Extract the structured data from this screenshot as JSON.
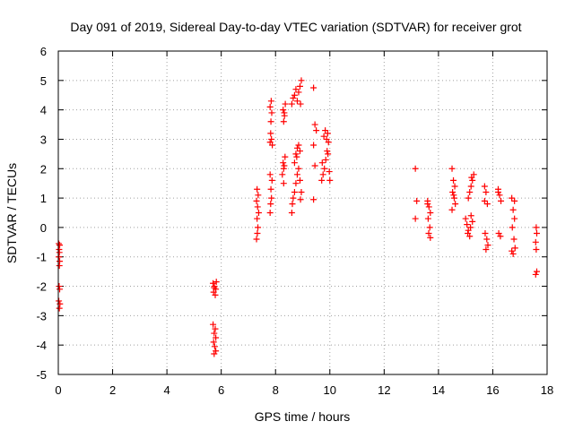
{
  "chart_data": {
    "type": "scatter",
    "title": "Day 091 of 2019, Sidereal Day-to-day VTEC variation (SDTVAR) for receiver grot",
    "xlabel": "GPS time / hours",
    "ylabel": "SDTVAR / TECUs",
    "xlim": [
      0,
      18
    ],
    "ylim": [
      -5,
      6
    ],
    "xticks": [
      0,
      2,
      4,
      6,
      8,
      10,
      12,
      14,
      16,
      18
    ],
    "yticks": [
      -5,
      -4,
      -3,
      -2,
      -1,
      0,
      1,
      2,
      3,
      4,
      5,
      6
    ],
    "grid": true,
    "marker": "+",
    "color": "#ff0000",
    "series": [
      {
        "name": "SDTVAR",
        "points": [
          [
            0.02,
            -0.55
          ],
          [
            0.05,
            -0.6
          ],
          [
            0.03,
            -0.75
          ],
          [
            0.04,
            -0.85
          ],
          [
            0.02,
            -1.0
          ],
          [
            0.05,
            -1.15
          ],
          [
            0.04,
            -1.3
          ],
          [
            0.03,
            -2.0
          ],
          [
            0.05,
            -2.1
          ],
          [
            0.02,
            -2.5
          ],
          [
            0.06,
            -2.6
          ],
          [
            0.04,
            -2.75
          ],
          [
            5.7,
            -1.9
          ],
          [
            5.75,
            -2.0
          ],
          [
            5.8,
            -2.1
          ],
          [
            5.72,
            -2.2
          ],
          [
            5.78,
            -2.3
          ],
          [
            5.74,
            -2.05
          ],
          [
            5.82,
            -1.85
          ],
          [
            5.7,
            -3.3
          ],
          [
            5.78,
            -3.45
          ],
          [
            5.74,
            -3.6
          ],
          [
            5.8,
            -3.75
          ],
          [
            5.72,
            -3.9
          ],
          [
            5.76,
            -4.05
          ],
          [
            5.8,
            -4.2
          ],
          [
            5.74,
            -4.3
          ],
          [
            7.3,
            -0.4
          ],
          [
            7.33,
            -0.2
          ],
          [
            7.35,
            0.0
          ],
          [
            7.32,
            0.3
          ],
          [
            7.38,
            0.5
          ],
          [
            7.34,
            0.7
          ],
          [
            7.3,
            0.9
          ],
          [
            7.36,
            1.1
          ],
          [
            7.32,
            1.3
          ],
          [
            7.8,
            0.5
          ],
          [
            7.82,
            0.8
          ],
          [
            7.85,
            1.0
          ],
          [
            7.83,
            1.3
          ],
          [
            7.87,
            1.6
          ],
          [
            7.8,
            1.8
          ],
          [
            7.8,
            2.9
          ],
          [
            7.85,
            3.0
          ],
          [
            7.82,
            3.2
          ],
          [
            7.88,
            2.8
          ],
          [
            7.83,
            3.6
          ],
          [
            7.86,
            3.9
          ],
          [
            7.8,
            4.1
          ],
          [
            7.84,
            4.3
          ],
          [
            8.25,
            1.8
          ],
          [
            8.3,
            2.0
          ],
          [
            8.28,
            2.2
          ],
          [
            8.35,
            2.4
          ],
          [
            8.32,
            2.1
          ],
          [
            8.3,
            1.5
          ],
          [
            8.3,
            3.6
          ],
          [
            8.33,
            3.8
          ],
          [
            8.28,
            4.0
          ],
          [
            8.36,
            4.2
          ],
          [
            8.32,
            3.9
          ],
          [
            8.6,
            0.5
          ],
          [
            8.62,
            0.8
          ],
          [
            8.65,
            1.0
          ],
          [
            8.7,
            1.2
          ],
          [
            8.75,
            1.5
          ],
          [
            8.8,
            1.8
          ],
          [
            8.85,
            2.0
          ],
          [
            8.9,
            1.6
          ],
          [
            8.95,
            1.2
          ],
          [
            8.92,
            0.95
          ],
          [
            8.7,
            2.2
          ],
          [
            8.75,
            2.5
          ],
          [
            8.8,
            2.7
          ],
          [
            8.85,
            2.8
          ],
          [
            8.9,
            2.6
          ],
          [
            8.78,
            2.4
          ],
          [
            8.6,
            4.2
          ],
          [
            8.65,
            4.4
          ],
          [
            8.7,
            4.5
          ],
          [
            8.75,
            4.7
          ],
          [
            8.8,
            4.3
          ],
          [
            8.85,
            4.6
          ],
          [
            8.9,
            4.8
          ],
          [
            8.95,
            5.0
          ],
          [
            8.92,
            4.2
          ],
          [
            9.4,
            4.75
          ],
          [
            9.45,
            3.5
          ],
          [
            9.5,
            3.3
          ],
          [
            9.4,
            2.8
          ],
          [
            9.45,
            2.1
          ],
          [
            9.4,
            0.95
          ],
          [
            9.7,
            1.6
          ],
          [
            9.75,
            1.8
          ],
          [
            9.8,
            2.0
          ],
          [
            9.85,
            2.3
          ],
          [
            9.9,
            2.6
          ],
          [
            9.95,
            2.9
          ],
          [
            9.78,
            3.1
          ],
          [
            9.83,
            3.3
          ],
          [
            9.88,
            3.0
          ],
          [
            9.93,
            2.5
          ],
          [
            9.98,
            1.9
          ],
          [
            10.0,
            1.6
          ],
          [
            9.72,
            2.2
          ],
          [
            9.92,
            3.2
          ],
          [
            13.15,
            2.0
          ],
          [
            13.2,
            0.9
          ],
          [
            13.15,
            0.3
          ],
          [
            13.6,
            0.9
          ],
          [
            13.65,
            0.7
          ],
          [
            13.7,
            0.5
          ],
          [
            13.62,
            0.3
          ],
          [
            13.68,
            0.0
          ],
          [
            13.64,
            -0.2
          ],
          [
            13.7,
            -0.35
          ],
          [
            13.6,
            0.8
          ],
          [
            14.5,
            2.0
          ],
          [
            14.55,
            1.6
          ],
          [
            14.6,
            1.4
          ],
          [
            14.52,
            1.2
          ],
          [
            14.58,
            1.0
          ],
          [
            14.62,
            0.8
          ],
          [
            14.5,
            0.6
          ],
          [
            14.56,
            1.1
          ],
          [
            15.0,
            0.3
          ],
          [
            15.05,
            0.1
          ],
          [
            15.1,
            -0.1
          ],
          [
            15.15,
            -0.3
          ],
          [
            15.2,
            0.4
          ],
          [
            15.25,
            0.2
          ],
          [
            15.08,
            -0.2
          ],
          [
            15.18,
            0.0
          ],
          [
            15.1,
            1.0
          ],
          [
            15.15,
            1.2
          ],
          [
            15.2,
            1.4
          ],
          [
            15.25,
            1.6
          ],
          [
            15.3,
            1.8
          ],
          [
            15.22,
            1.7
          ],
          [
            15.7,
            1.4
          ],
          [
            15.75,
            1.2
          ],
          [
            15.8,
            0.8
          ],
          [
            15.72,
            -0.2
          ],
          [
            15.78,
            -0.4
          ],
          [
            15.82,
            -0.6
          ],
          [
            15.75,
            -0.75
          ],
          [
            15.7,
            0.9
          ],
          [
            16.2,
            1.3
          ],
          [
            16.25,
            1.1
          ],
          [
            16.3,
            0.9
          ],
          [
            16.22,
            -0.2
          ],
          [
            16.28,
            -0.3
          ],
          [
            16.2,
            1.2
          ],
          [
            16.7,
            1.0
          ],
          [
            16.75,
            0.6
          ],
          [
            16.8,
            0.3
          ],
          [
            16.72,
            0.0
          ],
          [
            16.78,
            -0.4
          ],
          [
            16.82,
            -0.7
          ],
          [
            16.75,
            -0.9
          ],
          [
            16.7,
            -0.8
          ],
          [
            16.8,
            0.9
          ],
          [
            17.6,
            0.0
          ],
          [
            17.62,
            -0.2
          ],
          [
            17.58,
            -0.5
          ],
          [
            17.6,
            -0.75
          ],
          [
            17.62,
            -1.5
          ],
          [
            17.58,
            -1.6
          ]
        ]
      }
    ]
  }
}
